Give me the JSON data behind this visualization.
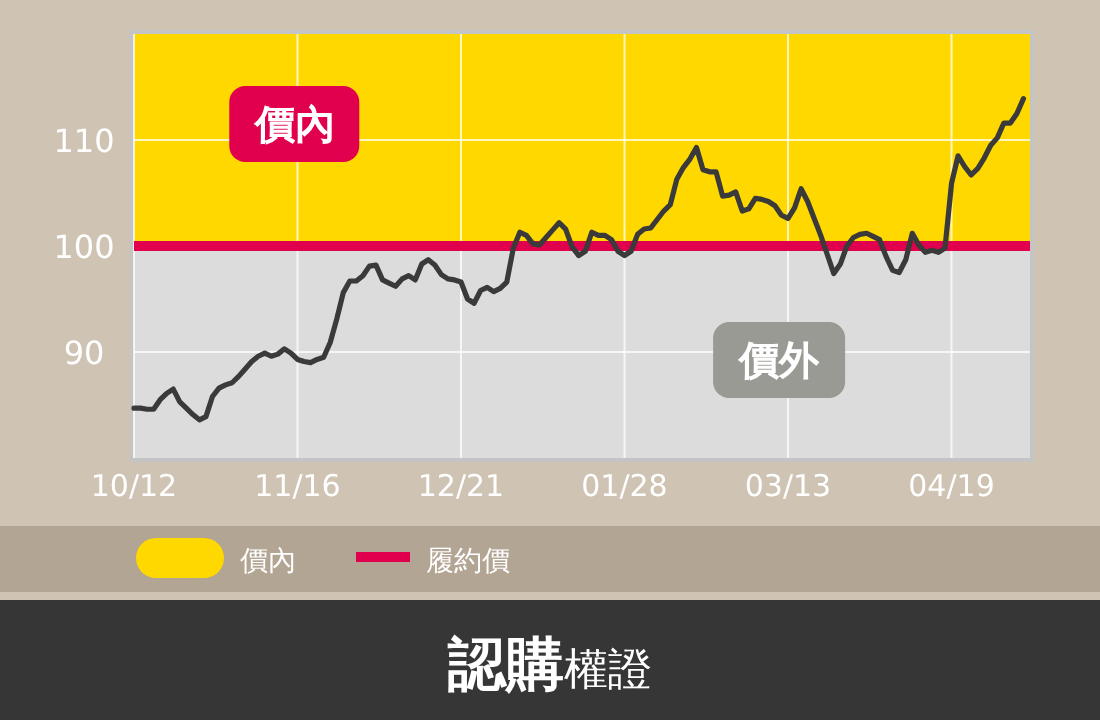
{
  "chart_data": {
    "type": "line",
    "title": "認購權證",
    "categories": [
      "10/12",
      null,
      null,
      null,
      null,
      null,
      null,
      null,
      null,
      null,
      null,
      null,
      null,
      null,
      null,
      null,
      null,
      null,
      null,
      null,
      null,
      null,
      null,
      null,
      null,
      "11/16",
      null,
      null,
      null,
      null,
      null,
      null,
      null,
      null,
      null,
      null,
      null,
      null,
      null,
      null,
      null,
      null,
      null,
      null,
      null,
      null,
      null,
      null,
      null,
      null,
      "12/21",
      null,
      null,
      null,
      null,
      null,
      null,
      null,
      null,
      null,
      null,
      null,
      null,
      null,
      null,
      null,
      null,
      null,
      null,
      null,
      null,
      null,
      null,
      null,
      null,
      "01/28",
      null,
      null,
      null,
      null,
      null,
      null,
      null,
      null,
      null,
      null,
      null,
      null,
      null,
      null,
      null,
      null,
      null,
      null,
      null,
      null,
      null,
      null,
      null,
      null,
      "03/13",
      null,
      null,
      null,
      null,
      null,
      null,
      null,
      null,
      null,
      null,
      null,
      null,
      null,
      null,
      null,
      null,
      null,
      null,
      null,
      null,
      null,
      null,
      null,
      null,
      "04/19",
      null,
      null,
      null,
      null,
      null,
      null,
      null,
      null,
      null,
      null,
      null
    ],
    "series": [
      {
        "color": "#3a3a3a",
        "values": [
          84.7,
          84.7,
          84.6,
          84.6,
          85.5,
          86.1,
          86.5,
          85.3,
          84.7,
          84.1,
          83.6,
          83.9,
          85.8,
          86.6,
          86.9,
          87.1,
          87.7,
          88.4,
          89.1,
          89.6,
          89.9,
          89.6,
          89.8,
          90.3,
          89.9,
          89.3,
          89.1,
          89.0,
          89.3,
          89.5,
          90.9,
          93.1,
          95.6,
          96.7,
          96.7,
          97.2,
          98.1,
          98.2,
          96.8,
          96.5,
          96.2,
          96.9,
          97.2,
          96.8,
          98.3,
          98.7,
          98.2,
          97.3,
          96.9,
          96.8,
          96.6,
          95.0,
          94.6,
          95.8,
          96.1,
          95.7,
          96.0,
          96.6,
          99.8,
          101.3,
          101.0,
          100.2,
          100.1,
          100.8,
          101.5,
          102.2,
          101.6,
          99.9,
          99.1,
          99.5,
          101.3,
          101.0,
          101.0,
          100.6,
          99.5,
          99.1,
          99.5,
          101.1,
          101.6,
          101.7,
          102.5,
          103.3,
          103.9,
          106.3,
          107.4,
          108.2,
          109.3,
          107.2,
          107.0,
          107.0,
          104.7,
          104.8,
          105.1,
          103.3,
          103.5,
          104.5,
          104.4,
          104.2,
          103.8,
          102.9,
          102.6,
          103.6,
          105.4,
          104.2,
          102.6,
          101.0,
          99.2,
          97.4,
          98.3,
          100.0,
          100.8,
          101.1,
          101.2,
          100.9,
          100.6,
          99.0,
          97.7,
          97.5,
          98.7,
          101.2,
          100.1,
          99.4,
          99.6,
          99.4,
          99.8,
          105.9,
          108.5,
          107.5,
          106.7,
          107.3,
          108.3,
          109.5,
          110.2,
          111.6,
          111.6,
          112.5,
          113.9
        ]
      }
    ],
    "ylim": [
      80,
      120
    ],
    "yticks": [
      90,
      100,
      110
    ],
    "bands": [
      {
        "axis": "y",
        "from": 100,
        "to": 120,
        "label": "價內",
        "color": "#ffd800"
      },
      {
        "axis": "y",
        "from": 80,
        "to": 100,
        "label": "價外",
        "color": "#dcdcdc"
      }
    ],
    "ref_lines": [
      {
        "axis": "y",
        "value": 100,
        "label": "履約價",
        "color": "#e0004d"
      }
    ],
    "grid": true,
    "legend": "bottom",
    "line_style": "solid",
    "marker": "none"
  }
}
